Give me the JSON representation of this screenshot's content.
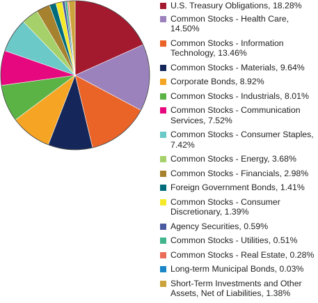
{
  "chart_data": {
    "type": "pie",
    "title": "",
    "slices": [
      {
        "label": "U.S. Treasury Obligations, 18.28%",
        "value": 18.28,
        "color": "#a3192e"
      },
      {
        "label": "Common Stocks - Health Care, 14.50%",
        "value": 14.5,
        "color": "#9b82bd"
      },
      {
        "label": "Common Stocks - Information Technology, 13.46%",
        "value": 13.46,
        "color": "#ea6428"
      },
      {
        "label": "Common Stocks - Materials, 9.64%",
        "value": 9.64,
        "color": "#15275a"
      },
      {
        "label": "Corporate Bonds, 8.92%",
        "value": 8.92,
        "color": "#f6a423"
      },
      {
        "label": "Common Stocks - Industrials, 8.01%",
        "value": 8.01,
        "color": "#5bb346"
      },
      {
        "label": "Common Stocks - Communication Services, 7.52%",
        "value": 7.52,
        "color": "#e6087f"
      },
      {
        "label": "Common Stocks - Consumer Staples, 7.42%",
        "value": 7.42,
        "color": "#6bc9c8"
      },
      {
        "label": "Common Stocks - Energy, 3.68%",
        "value": 3.68,
        "color": "#a6d06a"
      },
      {
        "label": "Common Stocks - Financials, 2.98%",
        "value": 2.98,
        "color": "#a6822f"
      },
      {
        "label": "Foreign Government Bonds, 1.41%",
        "value": 1.41,
        "color": "#006c7b"
      },
      {
        "label": "Common Stocks - Consumer Discretionary, 1.39%",
        "value": 1.39,
        "color": "#f5ea2a"
      },
      {
        "label": "Agency Securities, 0.59%",
        "value": 0.59,
        "color": "#4a5aa1"
      },
      {
        "label": "Common Stocks - Utilities, 0.51%",
        "value": 0.51,
        "color": "#43b58c"
      },
      {
        "label": "Common Stocks - Real Estate, 0.28%",
        "value": 0.28,
        "color": "#ec6c5c"
      },
      {
        "label": "Long-term Municipal Bonds, 0.03%",
        "value": 0.03,
        "color": "#1a86c7"
      },
      {
        "label": "Short-Term Investments and Other Assets, Net of Liabilities, 1.38%",
        "value": 1.38,
        "color": "#cba33c"
      }
    ]
  }
}
